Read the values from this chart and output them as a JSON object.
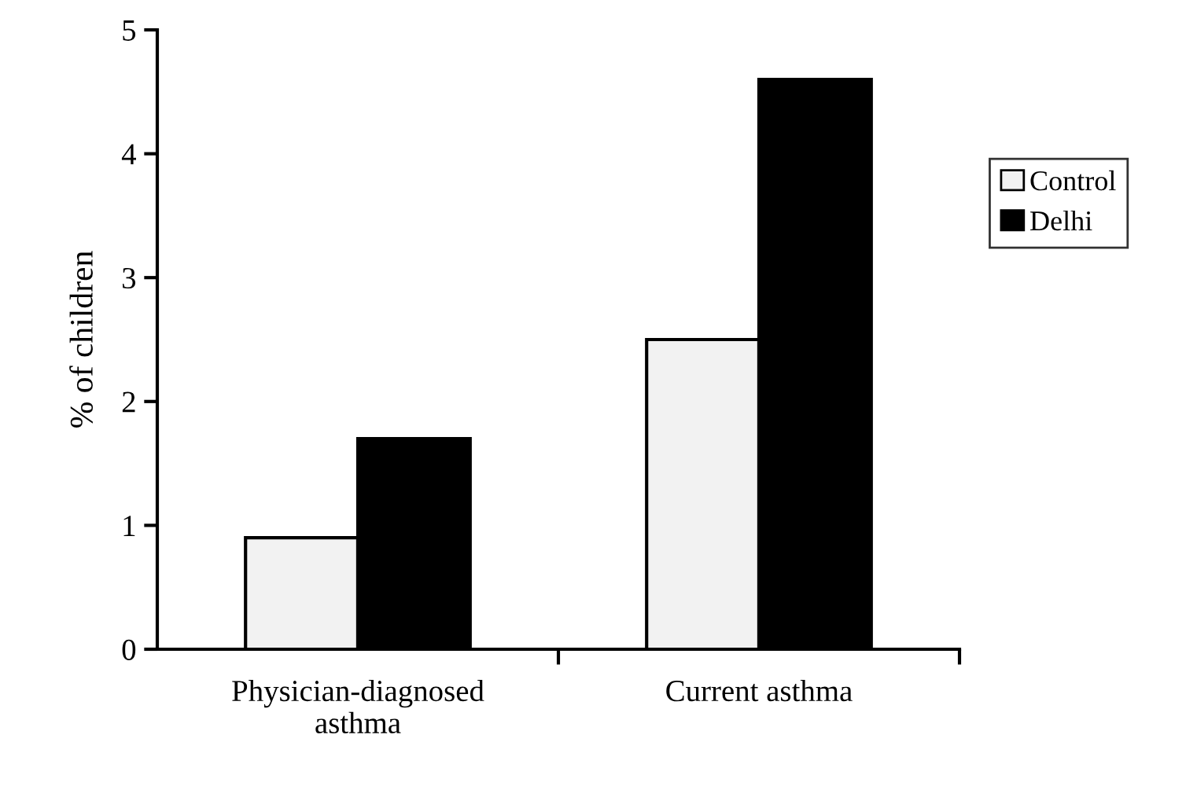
{
  "chart_data": {
    "type": "bar",
    "ylabel": "% of children",
    "categories": [
      "Physician-diagnosed\nasthma",
      "Current asthma"
    ],
    "series": [
      {
        "name": "Control",
        "color": "#f2f2f2",
        "values": [
          0.9,
          2.5
        ]
      },
      {
        "name": "Delhi",
        "color": "#000000",
        "values": [
          1.7,
          4.6
        ]
      }
    ],
    "ylim": [
      0,
      5
    ],
    "yticks": [
      0,
      1,
      2,
      3,
      4,
      5
    ],
    "grid": false,
    "legend": "right"
  }
}
